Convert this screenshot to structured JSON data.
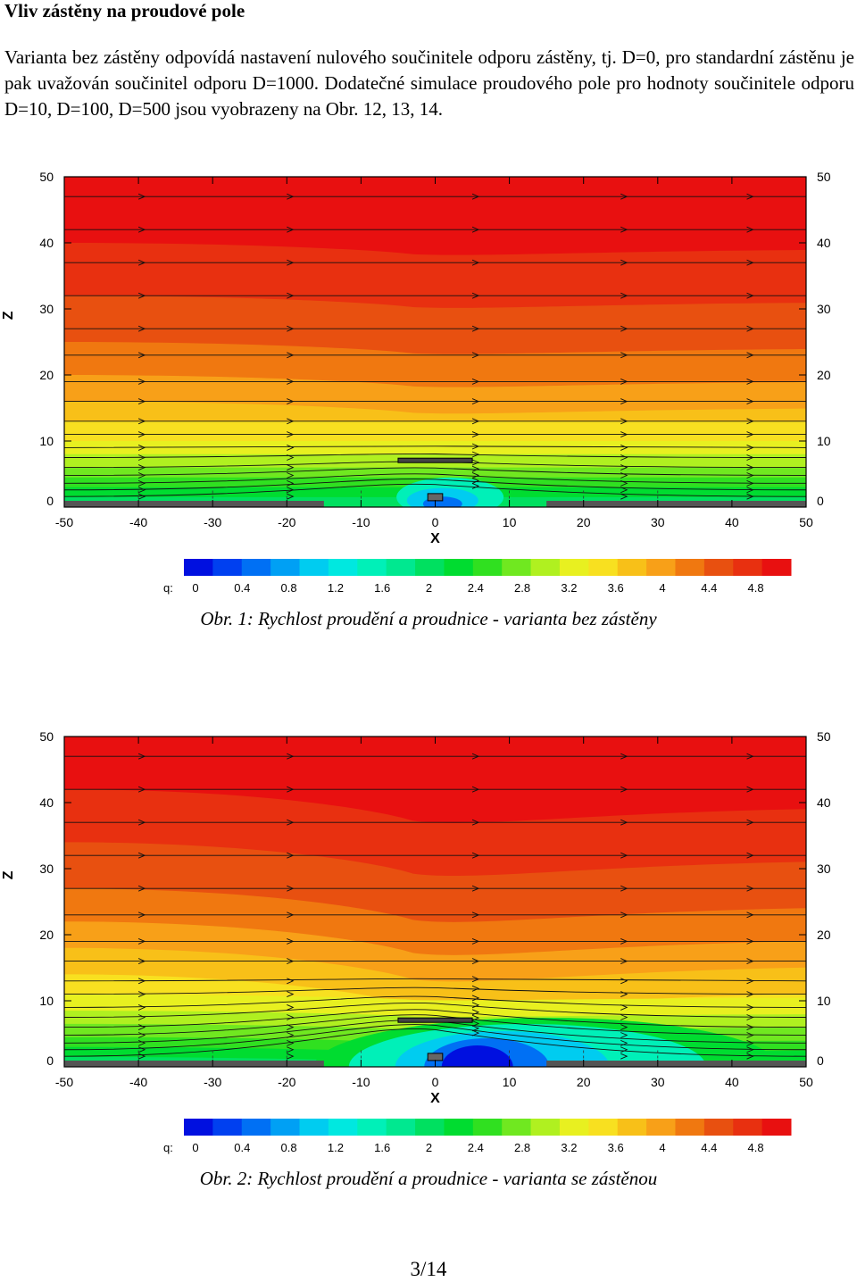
{
  "heading": "Vliv zástěny na proudové pole",
  "paragraph": "Varianta bez zástěny odpovídá nastavení nulového součinitele odporu zástěny, tj. D=0, pro standardní zástěnu je pak uvažován součinitel odporu D=1000. Dodatečné simulace proudového pole pro hodnoty součinitele odporu D=10, D=100, D=500 jsou vyobrazeny na Obr. 12, 13, 14.",
  "colors": {
    "scale": [
      "#0010e0",
      "#0040f0",
      "#0070f4",
      "#00a0f4",
      "#00ccf0",
      "#00e8e0",
      "#00f0b8",
      "#00e890",
      "#00e060",
      "#00dc30",
      "#30e020",
      "#70e820",
      "#b0f020",
      "#e8f020",
      "#f8e020",
      "#f8c018",
      "#f8a018",
      "#f07810",
      "#e85010",
      "#e83010",
      "#e81010"
    ]
  },
  "figures": [
    {
      "x_label": "X",
      "z_label": "Z",
      "x_ticks": [
        "-50",
        "-40",
        "-30",
        "-20",
        "-10",
        "0",
        "10",
        "20",
        "30",
        "40",
        "50"
      ],
      "z_ticks": [
        "0",
        "10",
        "20",
        "30",
        "40",
        "50"
      ],
      "colorbar_label": "q:",
      "colorbar_ticks": [
        "0",
        "0.4",
        "0.8",
        "1.2",
        "1.6",
        "2",
        "2.4",
        "2.8",
        "3.2",
        "3.6",
        "4",
        "4.4",
        "4.8"
      ],
      "caption": "Obr. 1: Rychlost proudění a proudnice - varianta bez zástěny"
    },
    {
      "x_label": "X",
      "z_label": "Z",
      "x_ticks": [
        "-50",
        "-40",
        "-30",
        "-20",
        "-10",
        "0",
        "10",
        "20",
        "30",
        "40",
        "50"
      ],
      "z_ticks": [
        "0",
        "10",
        "20",
        "30",
        "40",
        "50"
      ],
      "colorbar_label": "q:",
      "colorbar_ticks": [
        "0",
        "0.4",
        "0.8",
        "1.2",
        "1.6",
        "2",
        "2.4",
        "2.8",
        "3.2",
        "3.6",
        "4",
        "4.4",
        "4.8"
      ],
      "caption": "Obr. 2: Rychlost proudění a proudnice - varianta se zástěnou"
    }
  ],
  "page_number": "3/14"
}
